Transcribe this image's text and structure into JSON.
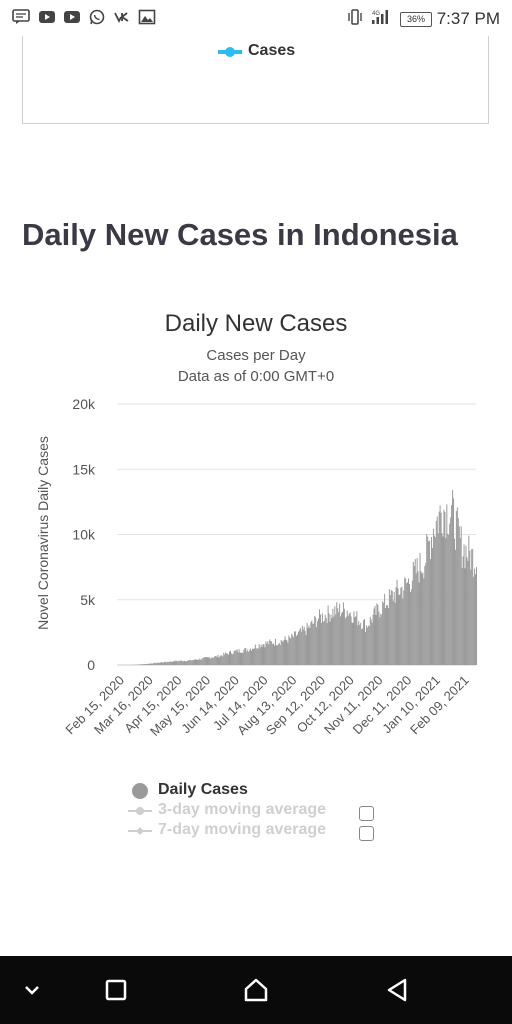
{
  "status_bar": {
    "time": "7:37 PM",
    "battery": "36%",
    "network": "4G",
    "icons": [
      "message-icon",
      "youtube-icon",
      "youtube-icon",
      "whatsapp-icon",
      "vk-icon",
      "gallery-icon",
      "vibrate-icon",
      "signal-icon",
      "battery-icon"
    ]
  },
  "top_chart": {
    "legend_label": "Cases",
    "legend_color": "#2bbcf0"
  },
  "page_title": "Daily New Cases in Indonesia",
  "chart_data": {
    "type": "bar",
    "title": "Daily New Cases",
    "subtitle_line1": "Cases per Day",
    "subtitle_line2": "Data as of 0:00 GMT+0",
    "ylabel": "Novel Coronavirus Daily Cases",
    "xlabel": "",
    "ylim": [
      0,
      20000
    ],
    "yticks": [
      "0",
      "5k",
      "10k",
      "15k",
      "20k"
    ],
    "ytick_values": [
      0,
      5000,
      10000,
      15000,
      20000
    ],
    "x_tick_labels": [
      "Feb 15, 2020",
      "Mar 16, 2020",
      "Apr 15, 2020",
      "May 15, 2020",
      "Jun 14, 2020",
      "Jul 14, 2020",
      "Aug 13, 2020",
      "Sep 12, 2020",
      "Oct 12, 2020",
      "Nov 11, 2020",
      "Dec 11, 2020",
      "Jan 10, 2021",
      "Feb 09, 2021"
    ],
    "x_start": "Feb 15, 2020",
    "x_end": "Feb 24, 2021",
    "grid": true,
    "bar_color": "#9a9a9a",
    "series": [
      {
        "name": "Daily Cases",
        "x": [
          "Feb 15, 2020",
          "Mar 01, 2020",
          "Mar 16, 2020",
          "Apr 01, 2020",
          "Apr 15, 2020",
          "May 01, 2020",
          "May 15, 2020",
          "Jun 01, 2020",
          "Jun 14, 2020",
          "Jul 01, 2020",
          "Jul 14, 2020",
          "Aug 01, 2020",
          "Aug 13, 2020",
          "Sep 01, 2020",
          "Sep 12, 2020",
          "Oct 01, 2020",
          "Oct 12, 2020",
          "Nov 01, 2020",
          "Nov 11, 2020",
          "Dec 01, 2020",
          "Dec 11, 2020",
          "Jan 01, 2021",
          "Jan 10, 2021",
          "Jan 20, 2021",
          "Jan 30, 2021",
          "Feb 09, 2021",
          "Feb 24, 2021"
        ],
        "y": [
          0,
          0,
          80,
          200,
          300,
          350,
          500,
          700,
          1000,
          1200,
          1600,
          1800,
          2000,
          2800,
          3600,
          4200,
          4200,
          3000,
          4000,
          5500,
          6000,
          8000,
          10500,
          12000,
          11500,
          9000,
          8000
        ]
      }
    ],
    "legend": [
      {
        "label": "Daily Cases",
        "color": "#9a9a9a",
        "active": true
      },
      {
        "label": "3-day moving average",
        "color": "#cfcfcf",
        "active": false
      },
      {
        "label": "7-day moving average",
        "color": "#cfcfcf",
        "active": false
      }
    ]
  },
  "nav_bar": {
    "buttons": [
      "chevron-down-icon",
      "recents-icon",
      "home-icon",
      "back-icon"
    ]
  }
}
